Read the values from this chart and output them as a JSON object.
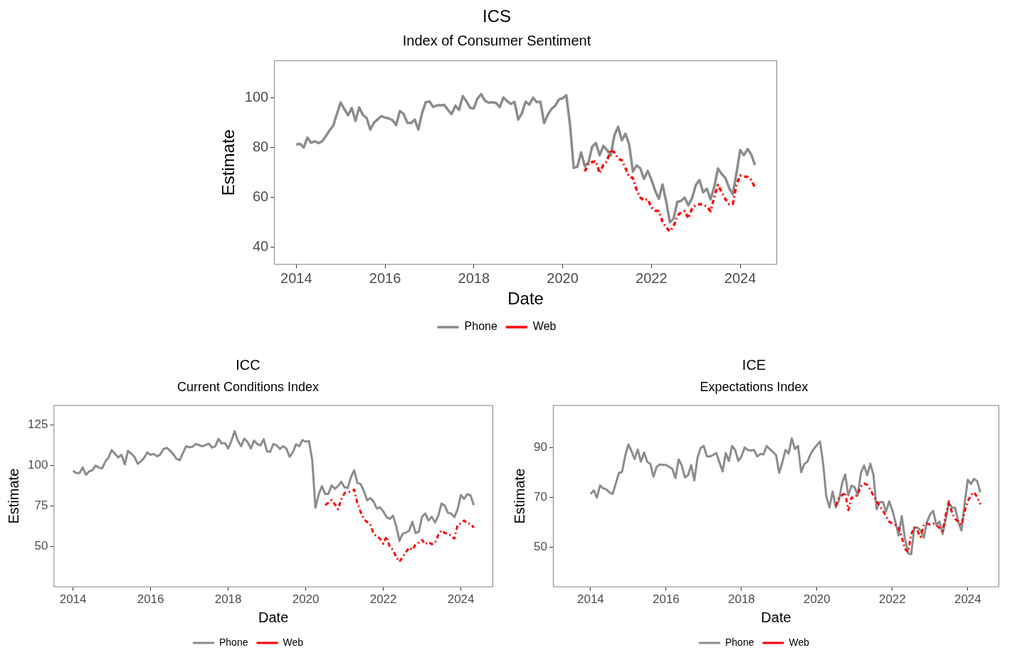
{
  "chart_data": [
    {
      "type": "line",
      "title": "ICS",
      "subtitle": "Index of Consumer Sentiment",
      "xlabel": "Date",
      "ylabel": "Estimate",
      "legend": "bottom",
      "grid": false,
      "xlim": [
        "2013-07",
        "2024-11"
      ],
      "xticks": [
        "2014",
        "2016",
        "2018",
        "2020",
        "2022",
        "2024"
      ],
      "ylim": [
        33,
        115
      ],
      "yticks": [
        40,
        60,
        80,
        100
      ],
      "x": [
        "2014-01",
        "2014-02",
        "2014-03",
        "2014-04",
        "2014-05",
        "2014-06",
        "2014-07",
        "2014-08",
        "2014-09",
        "2014-10",
        "2014-11",
        "2014-12",
        "2015-01",
        "2015-02",
        "2015-03",
        "2015-04",
        "2015-05",
        "2015-06",
        "2015-07",
        "2015-08",
        "2015-09",
        "2015-10",
        "2015-11",
        "2015-12",
        "2016-01",
        "2016-02",
        "2016-03",
        "2016-04",
        "2016-05",
        "2016-06",
        "2016-07",
        "2016-08",
        "2016-09",
        "2016-10",
        "2016-11",
        "2016-12",
        "2017-01",
        "2017-02",
        "2017-03",
        "2017-04",
        "2017-05",
        "2017-06",
        "2017-07",
        "2017-08",
        "2017-09",
        "2017-10",
        "2017-11",
        "2017-12",
        "2018-01",
        "2018-02",
        "2018-03",
        "2018-04",
        "2018-05",
        "2018-06",
        "2018-07",
        "2018-08",
        "2018-09",
        "2018-10",
        "2018-11",
        "2018-12",
        "2019-01",
        "2019-02",
        "2019-03",
        "2019-04",
        "2019-05",
        "2019-06",
        "2019-07",
        "2019-08",
        "2019-09",
        "2019-10",
        "2019-11",
        "2019-12",
        "2020-01",
        "2020-02",
        "2020-03",
        "2020-04",
        "2020-05",
        "2020-06",
        "2020-07",
        "2020-08",
        "2020-09",
        "2020-10",
        "2020-11",
        "2020-12",
        "2021-01",
        "2021-02",
        "2021-03",
        "2021-04",
        "2021-05",
        "2021-06",
        "2021-07",
        "2021-08",
        "2021-09",
        "2021-10",
        "2021-11",
        "2021-12",
        "2022-01",
        "2022-02",
        "2022-03",
        "2022-04",
        "2022-05",
        "2022-06",
        "2022-07",
        "2022-08",
        "2022-09",
        "2022-10",
        "2022-11",
        "2022-12",
        "2023-01",
        "2023-02",
        "2023-03",
        "2023-04",
        "2023-05",
        "2023-06",
        "2023-07",
        "2023-08",
        "2023-09",
        "2023-10",
        "2023-11",
        "2023-12",
        "2024-01",
        "2024-02",
        "2024-03",
        "2024-04",
        "2024-05"
      ],
      "series": [
        {
          "name": "Phone",
          "color": "#8c8c8c",
          "line_style": "solid",
          "values": [
            81.2,
            81.5,
            80,
            84,
            81.9,
            82.5,
            81.8,
            82.5,
            84.6,
            86.9,
            88.8,
            93.6,
            98.1,
            95.4,
            93,
            95.9,
            90.7,
            96.1,
            93.1,
            91.9,
            87.2,
            90,
            91.3,
            92.6,
            92,
            91.7,
            91,
            89,
            94.7,
            93.5,
            90,
            89.8,
            91.2,
            87.2,
            93.8,
            98.2,
            98.5,
            96.3,
            96.9,
            97,
            97.1,
            95.1,
            93.4,
            96.8,
            95.1,
            100.7,
            98.5,
            95.9,
            95.7,
            99.7,
            101.4,
            98.8,
            98,
            98.2,
            97.9,
            96.2,
            100.1,
            98.6,
            97.5,
            98.3,
            91.2,
            93.8,
            98.4,
            97.2,
            100,
            98.2,
            98.4,
            89.8,
            93.2,
            95.5,
            96.8,
            99.3,
            99.8,
            101,
            89.1,
            71.8,
            72.3,
            78.1,
            72.5,
            74.1,
            80.4,
            81.8,
            76.9,
            80.7,
            79,
            76.8,
            84.9,
            88.3,
            82.9,
            85.5,
            81.2,
            70.3,
            72.8,
            71.7,
            67.4,
            70.6,
            67.2,
            62.8,
            59.4,
            65.2,
            58.4,
            50,
            51.5,
            58.2,
            58.6,
            59.9,
            56.8,
            59.7,
            64.9,
            67,
            62,
            63.5,
            59.2,
            64.2,
            71.6,
            69.4,
            67.8,
            63.8,
            61.3,
            69.7,
            79,
            76.9,
            79.4,
            77.2,
            73
          ]
        },
        {
          "name": "Web",
          "color": "#ff0000",
          "line_style": "dashed",
          "x": [
            "2020-07",
            "2020-08",
            "2020-09",
            "2020-10",
            "2020-11",
            "2020-12",
            "2021-01",
            "2021-02",
            "2021-03",
            "2021-04",
            "2021-05",
            "2021-06",
            "2021-07",
            "2021-08",
            "2021-09",
            "2021-10",
            "2021-11",
            "2021-12",
            "2022-01",
            "2022-02",
            "2022-03",
            "2022-04",
            "2022-05",
            "2022-06",
            "2022-07",
            "2022-08",
            "2022-09",
            "2022-10",
            "2022-11",
            "2022-12",
            "2023-01",
            "2023-02",
            "2023-03",
            "2023-04",
            "2023-05",
            "2023-06",
            "2023-07",
            "2023-08",
            "2023-09",
            "2023-10",
            "2023-11",
            "2023-12",
            "2024-01",
            "2024-02",
            "2024-03",
            "2024-04",
            "2024-05"
          ],
          "values": [
            70.4,
            73.5,
            74.2,
            74.5,
            69.7,
            73,
            74.5,
            79.2,
            78,
            75.5,
            74.9,
            71.8,
            68.3,
            67.8,
            63,
            60,
            58.8,
            59.3,
            56,
            54.7,
            54.5,
            50.2,
            48,
            46.4,
            48.3,
            52.6,
            54,
            54.5,
            51.6,
            55.6,
            56.9,
            57.3,
            57.1,
            56.4,
            54.5,
            60.2,
            65,
            62.1,
            59.3,
            57.3,
            57.3,
            65,
            68.8,
            68.3,
            68.3,
            67,
            64
          ]
        }
      ]
    },
    {
      "type": "line",
      "title": "ICC",
      "subtitle": "Current Conditions Index",
      "xlabel": "Date",
      "ylabel": "Estimate",
      "legend": "bottom",
      "grid": false,
      "xlim": [
        "2013-07",
        "2024-11"
      ],
      "xticks": [
        "2014",
        "2016",
        "2018",
        "2020",
        "2022",
        "2024"
      ],
      "ylim": [
        25,
        137
      ],
      "yticks": [
        50,
        75,
        100,
        125
      ],
      "x": [
        "2014-01",
        "2014-02",
        "2014-03",
        "2014-04",
        "2014-05",
        "2014-06",
        "2014-07",
        "2014-08",
        "2014-09",
        "2014-10",
        "2014-11",
        "2014-12",
        "2015-01",
        "2015-02",
        "2015-03",
        "2015-04",
        "2015-05",
        "2015-06",
        "2015-07",
        "2015-08",
        "2015-09",
        "2015-10",
        "2015-11",
        "2015-12",
        "2016-01",
        "2016-02",
        "2016-03",
        "2016-04",
        "2016-05",
        "2016-06",
        "2016-07",
        "2016-08",
        "2016-09",
        "2016-10",
        "2016-11",
        "2016-12",
        "2017-01",
        "2017-02",
        "2017-03",
        "2017-04",
        "2017-05",
        "2017-06",
        "2017-07",
        "2017-08",
        "2017-09",
        "2017-10",
        "2017-11",
        "2017-12",
        "2018-01",
        "2018-02",
        "2018-03",
        "2018-04",
        "2018-05",
        "2018-06",
        "2018-07",
        "2018-08",
        "2018-09",
        "2018-10",
        "2018-11",
        "2018-12",
        "2019-01",
        "2019-02",
        "2019-03",
        "2019-04",
        "2019-05",
        "2019-06",
        "2019-07",
        "2019-08",
        "2019-09",
        "2019-10",
        "2019-11",
        "2019-12",
        "2020-01",
        "2020-02",
        "2020-03",
        "2020-04",
        "2020-05",
        "2020-06",
        "2020-07",
        "2020-08",
        "2020-09",
        "2020-10",
        "2020-11",
        "2020-12",
        "2021-01",
        "2021-02",
        "2021-03",
        "2021-04",
        "2021-05",
        "2021-06",
        "2021-07",
        "2021-08",
        "2021-09",
        "2021-10",
        "2021-11",
        "2021-12",
        "2022-01",
        "2022-02",
        "2022-03",
        "2022-04",
        "2022-05",
        "2022-06",
        "2022-07",
        "2022-08",
        "2022-09",
        "2022-10",
        "2022-11",
        "2022-12",
        "2023-01",
        "2023-02",
        "2023-03",
        "2023-04",
        "2023-05",
        "2023-06",
        "2023-07",
        "2023-08",
        "2023-09",
        "2023-10",
        "2023-11",
        "2023-12",
        "2024-01",
        "2024-02",
        "2024-03",
        "2024-04",
        "2024-05"
      ],
      "series": [
        {
          "name": "Phone",
          "color": "#8c8c8c",
          "line_style": "solid",
          "values": [
            96.6,
            95.2,
            95.3,
            98.6,
            94.1,
            96.2,
            97,
            99.8,
            98.5,
            98.1,
            102.2,
            104.8,
            109.3,
            107,
            104.8,
            106.4,
            100.5,
            108.8,
            107.2,
            105.2,
            100.9,
            102.4,
            104.6,
            107.9,
            106.4,
            106.9,
            105.5,
            106.6,
            110,
            110.7,
            109,
            106.9,
            104,
            103.1,
            107.5,
            111.7,
            111,
            111.4,
            113.1,
            112.4,
            111.6,
            112.5,
            113.3,
            110.9,
            111.6,
            116.2,
            113.4,
            113.6,
            110.3,
            115,
            121,
            115.2,
            111.7,
            116.4,
            114.3,
            110.3,
            115.2,
            113.1,
            112.2,
            116,
            108.6,
            108.3,
            113.1,
            112.2,
            110,
            111.7,
            110.3,
            105.2,
            107.9,
            112.9,
            111.7,
            115.5,
            114.5,
            114.8,
            103.4,
            73.8,
            81.9,
            87.1,
            82.4,
            82.4,
            87.6,
            85.5,
            87.2,
            89.8,
            86.4,
            86,
            92.8,
            96.9,
            89.1,
            88.4,
            84.1,
            78.4,
            79.8,
            77.6,
            73.4,
            74.1,
            71.6,
            68.1,
            66.9,
            69,
            62.6,
            53.4,
            57.9,
            58.6,
            59.7,
            65.2,
            58.3,
            59.1,
            68.3,
            70.3,
            66,
            68.3,
            64.8,
            69,
            76.4,
            75.2,
            70.7,
            70.3,
            68.1,
            72.9,
            81.7,
            79.3,
            82.2,
            81.4,
            75.5
          ]
        },
        {
          "name": "Web",
          "color": "#ff0000",
          "line_style": "dashed",
          "x": [
            "2020-07",
            "2020-08",
            "2020-09",
            "2020-10",
            "2020-11",
            "2020-12",
            "2021-01",
            "2021-02",
            "2021-03",
            "2021-04",
            "2021-05",
            "2021-06",
            "2021-07",
            "2021-08",
            "2021-09",
            "2021-10",
            "2021-11",
            "2021-12",
            "2022-01",
            "2022-02",
            "2022-03",
            "2022-04",
            "2022-05",
            "2022-06",
            "2022-07",
            "2022-08",
            "2022-09",
            "2022-10",
            "2022-11",
            "2022-12",
            "2023-01",
            "2023-02",
            "2023-03",
            "2023-04",
            "2023-05",
            "2023-06",
            "2023-07",
            "2023-08",
            "2023-09",
            "2023-10",
            "2023-11",
            "2023-12",
            "2024-01",
            "2024-02",
            "2024-03",
            "2024-04",
            "2024-05"
          ],
          "values": [
            75.5,
            76.9,
            78.6,
            75.9,
            72.9,
            79,
            82.8,
            83.5,
            83.8,
            85,
            76.4,
            71.2,
            66.9,
            65,
            63.4,
            57.9,
            56.2,
            54.8,
            51.7,
            56.2,
            49.7,
            47.9,
            43.5,
            40.6,
            43.6,
            46.5,
            49.3,
            47.9,
            51.4,
            52.5,
            54,
            51.4,
            52.8,
            51.4,
            52.2,
            57,
            60,
            58.3,
            57.9,
            56.6,
            54.8,
            63.4,
            64.3,
            66,
            64.3,
            64,
            61.7
          ]
        }
      ]
    },
    {
      "type": "line",
      "title": "ICE",
      "subtitle": "Expectations Index",
      "xlabel": "Date",
      "ylabel": "Estimate",
      "legend": "bottom",
      "grid": false,
      "xlim": [
        "2013-01",
        "2024-11"
      ],
      "xticks": [
        "2014",
        "2016",
        "2018",
        "2020",
        "2022",
        "2024"
      ],
      "ylim": [
        34,
        107
      ],
      "yticks": [
        50,
        70,
        90
      ],
      "x": [
        "2014-01",
        "2014-02",
        "2014-03",
        "2014-04",
        "2014-05",
        "2014-06",
        "2014-07",
        "2014-08",
        "2014-09",
        "2014-10",
        "2014-11",
        "2014-12",
        "2015-01",
        "2015-02",
        "2015-03",
        "2015-04",
        "2015-05",
        "2015-06",
        "2015-07",
        "2015-08",
        "2015-09",
        "2015-10",
        "2015-11",
        "2015-12",
        "2016-01",
        "2016-02",
        "2016-03",
        "2016-04",
        "2016-05",
        "2016-06",
        "2016-07",
        "2016-08",
        "2016-09",
        "2016-10",
        "2016-11",
        "2016-12",
        "2017-01",
        "2017-02",
        "2017-03",
        "2017-04",
        "2017-05",
        "2017-06",
        "2017-07",
        "2017-08",
        "2017-09",
        "2017-10",
        "2017-11",
        "2017-12",
        "2018-01",
        "2018-02",
        "2018-03",
        "2018-04",
        "2018-05",
        "2018-06",
        "2018-07",
        "2018-08",
        "2018-09",
        "2018-10",
        "2018-11",
        "2018-12",
        "2019-01",
        "2019-02",
        "2019-03",
        "2019-04",
        "2019-05",
        "2019-06",
        "2019-07",
        "2019-08",
        "2019-09",
        "2019-10",
        "2019-11",
        "2019-12",
        "2020-01",
        "2020-02",
        "2020-03",
        "2020-04",
        "2020-05",
        "2020-06",
        "2020-07",
        "2020-08",
        "2020-09",
        "2020-10",
        "2020-11",
        "2020-12",
        "2021-01",
        "2021-02",
        "2021-03",
        "2021-04",
        "2021-05",
        "2021-06",
        "2021-07",
        "2021-08",
        "2021-09",
        "2021-10",
        "2021-11",
        "2021-12",
        "2022-01",
        "2022-02",
        "2022-03",
        "2022-04",
        "2022-05",
        "2022-06",
        "2022-07",
        "2022-08",
        "2022-09",
        "2022-10",
        "2022-11",
        "2022-12",
        "2023-01",
        "2023-02",
        "2023-03",
        "2023-04",
        "2023-05",
        "2023-06",
        "2023-07",
        "2023-08",
        "2023-09",
        "2023-10",
        "2023-11",
        "2023-12",
        "2024-01",
        "2024-02",
        "2024-03",
        "2024-04",
        "2024-05"
      ],
      "series": [
        {
          "name": "Phone",
          "color": "#8c8c8c",
          "line_style": "solid",
          "values": [
            71.4,
            72.8,
            69.9,
            74.8,
            73.6,
            73.2,
            72,
            71.4,
            75.5,
            79.8,
            80.2,
            86.6,
            91.2,
            88.6,
            85.4,
            89.2,
            84.3,
            88,
            84.3,
            83.4,
            78.3,
            82.2,
            83.2,
            83,
            83,
            82.2,
            81.4,
            77.7,
            85.2,
            82.8,
            78,
            78.9,
            83,
            76.8,
            85.8,
            89.8,
            90.6,
            86.4,
            86.4,
            87,
            87.8,
            84,
            80.4,
            87.8,
            84.6,
            90.6,
            89,
            84.6,
            86.4,
            90,
            89,
            88.8,
            89,
            86.4,
            87.4,
            87.2,
            90.6,
            89.4,
            88.2,
            87,
            79.8,
            84,
            89,
            87.6,
            93.6,
            89.4,
            90.6,
            80.1,
            83.4,
            84.3,
            87.4,
            89.4,
            91,
            92.4,
            83.4,
            70.2,
            66,
            72.4,
            66,
            68.7,
            75.6,
            79.2,
            70.8,
            74.7,
            74.1,
            70.8,
            79.8,
            82.8,
            78.9,
            83.5,
            79,
            65.2,
            68.2,
            68.1,
            64.3,
            68.4,
            64.9,
            60.1,
            54.7,
            62.5,
            53.5,
            47.5,
            47.2,
            57.9,
            57.9,
            56.7,
            53.8,
            60.1,
            63.1,
            64.6,
            58.9,
            60.3,
            55.3,
            61.3,
            67.8,
            65.8,
            65.8,
            60.1,
            56.7,
            67.5,
            77.1,
            75.4,
            77.4,
            76.5,
            72
          ]
        },
        {
          "name": "Web",
          "color": "#ff0000",
          "line_style": "dashed",
          "x": [
            "2020-07",
            "2020-08",
            "2020-09",
            "2020-10",
            "2020-11",
            "2020-12",
            "2021-01",
            "2021-02",
            "2021-03",
            "2021-04",
            "2021-05",
            "2021-06",
            "2021-07",
            "2021-08",
            "2021-09",
            "2021-10",
            "2021-11",
            "2021-12",
            "2022-01",
            "2022-02",
            "2022-03",
            "2022-04",
            "2022-05",
            "2022-06",
            "2022-07",
            "2022-08",
            "2022-09",
            "2022-10",
            "2022-11",
            "2022-12",
            "2023-01",
            "2023-02",
            "2023-03",
            "2023-04",
            "2023-05",
            "2023-06",
            "2023-07",
            "2023-08",
            "2023-09",
            "2023-10",
            "2023-11",
            "2023-12",
            "2024-01",
            "2024-02",
            "2024-03",
            "2024-04",
            "2024-05"
          ],
          "values": [
            66.6,
            69.9,
            70.8,
            72,
            64.9,
            69.9,
            69.9,
            71.4,
            74.4,
            75.6,
            75,
            73.2,
            70.6,
            68.4,
            66.6,
            64.6,
            62.5,
            60.3,
            59.5,
            58.9,
            57.7,
            54.1,
            49.3,
            48.1,
            55.3,
            57.9,
            56.5,
            54.1,
            59.1,
            59.5,
            59.1,
            59.5,
            58.9,
            57.7,
            56.5,
            63.1,
            68.4,
            63.7,
            61.3,
            60.3,
            58.9,
            64.3,
            68.4,
            71,
            72,
            70.2,
            67.2
          ]
        }
      ]
    }
  ]
}
